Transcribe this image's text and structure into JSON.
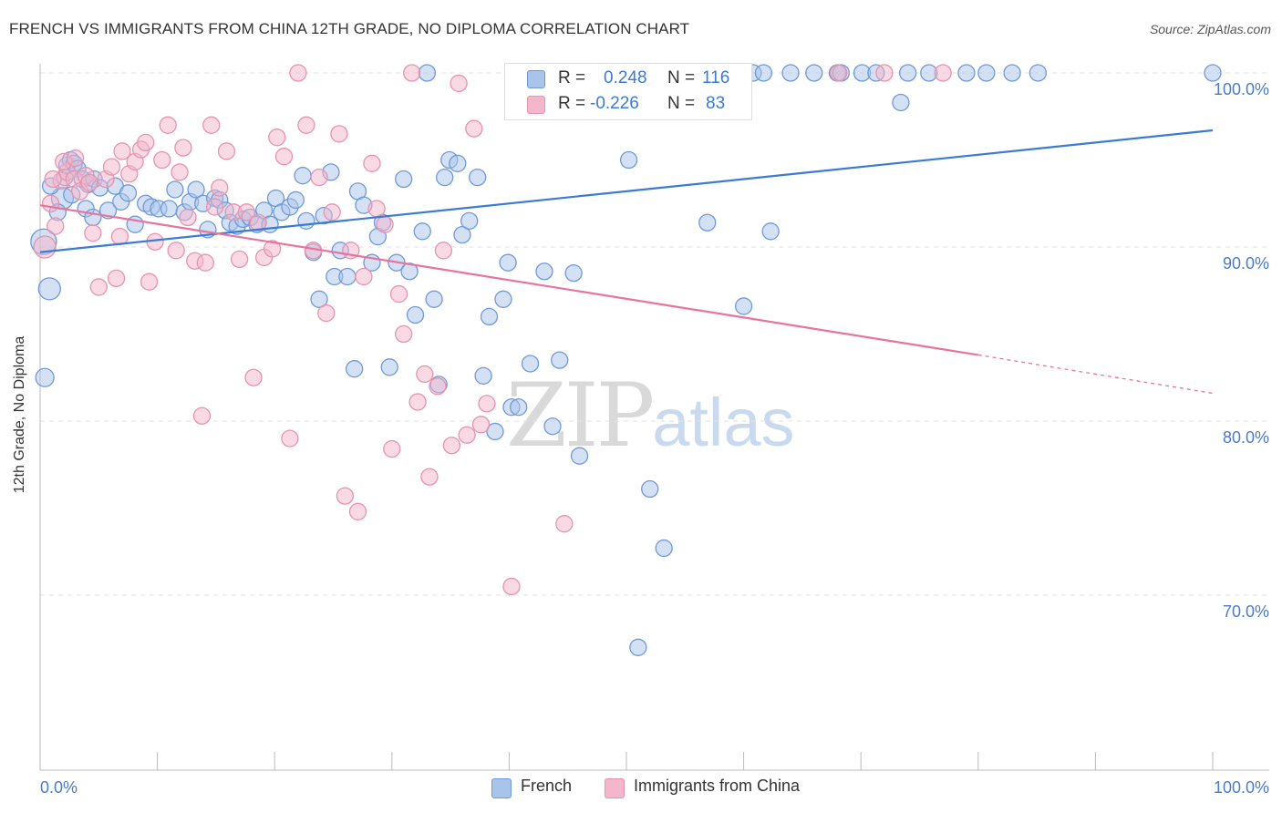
{
  "header": {
    "title": "FRENCH VS IMMIGRANTS FROM CHINA 12TH GRADE, NO DIPLOMA CORRELATION CHART",
    "source": "Source: ZipAtlas.com"
  },
  "watermark": {
    "zip": "ZIP",
    "atlas": "atlas"
  },
  "colors": {
    "blue": "#3a7bd5",
    "blue_fill": "#a9c4ea",
    "pink": "#e8739d",
    "pink_fill": "#f4b6ca",
    "axis_text": "#4a7cc9",
    "grid": "#e2e2e2"
  },
  "legend_top": {
    "rows": [
      {
        "r_label": "R =",
        "r_value": "0.248",
        "n_label": "N =",
        "n_value": "116"
      },
      {
        "r_label": "R =",
        "r_value": "-0.226",
        "n_label": "N =",
        "n_value": "83"
      }
    ]
  },
  "legend_bottom": {
    "items": [
      "French",
      "Immigrants from China"
    ]
  },
  "chart_data": {
    "type": "scatter",
    "title": "FRENCH VS IMMIGRANTS FROM CHINA 12TH GRADE, NO DIPLOMA CORRELATION CHART",
    "xlabel": "",
    "ylabel": "12th Grade, No Diploma",
    "xlim": [
      0,
      100
    ],
    "ylim": [
      60.5,
      101.5
    ],
    "x_tick_labels": [
      "0.0%",
      "100.0%"
    ],
    "y_ticks": [
      100,
      90,
      80,
      70
    ],
    "y_tick_labels": [
      "100.0%",
      "90.0%",
      "80.0%",
      "70.0%"
    ],
    "grid": true,
    "legend_position": "top-center",
    "series": [
      {
        "name": "French",
        "color": "#3a7bd5",
        "r": 0.248,
        "n": 116,
        "trend": [
          [
            0,
            89.7
          ],
          [
            100,
            96.7
          ]
        ],
        "points": [
          [
            0.3,
            90.3
          ],
          [
            0.8,
            87.6
          ],
          [
            0.4,
            82.5
          ],
          [
            1.9,
            92.8
          ],
          [
            2.1,
            94.0
          ],
          [
            2.3,
            94.7
          ],
          [
            2.6,
            95.0
          ],
          [
            2.9,
            94.8
          ],
          [
            3.2,
            94.5
          ],
          [
            3.6,
            93.9
          ],
          [
            4.1,
            93.6
          ],
          [
            4.6,
            93.9
          ],
          [
            5.1,
            93.4
          ],
          [
            5.8,
            92.1
          ],
          [
            6.4,
            93.5
          ],
          [
            6.9,
            92.6
          ],
          [
            7.5,
            93.1
          ],
          [
            8.1,
            91.3
          ],
          [
            9.0,
            92.5
          ],
          [
            9.5,
            92.3
          ],
          [
            10.1,
            92.2
          ],
          [
            11.0,
            92.2
          ],
          [
            11.5,
            93.3
          ],
          [
            12.3,
            92.0
          ],
          [
            12.8,
            92.6
          ],
          [
            13.3,
            93.3
          ],
          [
            13.9,
            92.5
          ],
          [
            14.3,
            91.0
          ],
          [
            14.9,
            92.8
          ],
          [
            15.3,
            92.7
          ],
          [
            15.8,
            92.1
          ],
          [
            16.2,
            91.4
          ],
          [
            16.8,
            91.2
          ],
          [
            17.3,
            91.6
          ],
          [
            17.9,
            91.7
          ],
          [
            18.5,
            91.3
          ],
          [
            19.1,
            92.1
          ],
          [
            19.6,
            91.3
          ],
          [
            20.1,
            92.8
          ],
          [
            20.6,
            92.0
          ],
          [
            21.3,
            92.3
          ],
          [
            21.8,
            92.7
          ],
          [
            22.4,
            94.1
          ],
          [
            22.7,
            91.5
          ],
          [
            23.3,
            89.7
          ],
          [
            23.8,
            87.0
          ],
          [
            24.2,
            91.8
          ],
          [
            24.8,
            94.3
          ],
          [
            25.1,
            88.3
          ],
          [
            25.6,
            89.8
          ],
          [
            26.2,
            88.3
          ],
          [
            26.8,
            83.0
          ],
          [
            27.1,
            93.2
          ],
          [
            27.6,
            92.4
          ],
          [
            28.3,
            89.1
          ],
          [
            28.8,
            90.6
          ],
          [
            29.2,
            91.4
          ],
          [
            29.8,
            83.1
          ],
          [
            30.4,
            89.1
          ],
          [
            31.0,
            93.9
          ],
          [
            31.5,
            88.6
          ],
          [
            32.0,
            86.1
          ],
          [
            32.6,
            90.9
          ],
          [
            33.0,
            100.0
          ],
          [
            33.6,
            87.0
          ],
          [
            34.0,
            82.1
          ],
          [
            34.5,
            94.0
          ],
          [
            34.9,
            95.0
          ],
          [
            35.6,
            94.8
          ],
          [
            36.0,
            90.7
          ],
          [
            36.6,
            91.5
          ],
          [
            37.3,
            94.0
          ],
          [
            37.8,
            82.6
          ],
          [
            38.3,
            86.0
          ],
          [
            38.8,
            79.4
          ],
          [
            39.5,
            87.0
          ],
          [
            39.9,
            89.1
          ],
          [
            40.2,
            80.8
          ],
          [
            40.8,
            80.8
          ],
          [
            41.5,
            100.0
          ],
          [
            41.8,
            83.3
          ],
          [
            42.4,
            100.0
          ],
          [
            43.0,
            88.6
          ],
          [
            43.7,
            79.7
          ],
          [
            44.3,
            83.5
          ],
          [
            44.9,
            100.0
          ],
          [
            45.5,
            88.5
          ],
          [
            46.0,
            78.0
          ],
          [
            46.9,
            100.0
          ],
          [
            48.2,
            100.0
          ],
          [
            49.4,
            100.0
          ],
          [
            50.2,
            95.0
          ],
          [
            51.0,
            67.0
          ],
          [
            52.0,
            76.1
          ],
          [
            52.6,
            100.0
          ],
          [
            53.2,
            72.7
          ],
          [
            53.7,
            100.0
          ],
          [
            55.8,
            100.0
          ],
          [
            56.4,
            100.0
          ],
          [
            56.9,
            91.4
          ],
          [
            59.0,
            100.0
          ],
          [
            60.0,
            86.6
          ],
          [
            60.8,
            100.0
          ],
          [
            61.7,
            100.0
          ],
          [
            62.3,
            90.9
          ],
          [
            64.0,
            100.0
          ],
          [
            66.0,
            100.0
          ],
          [
            68.0,
            100.0
          ],
          [
            68.3,
            100.0
          ],
          [
            70.1,
            100.0
          ],
          [
            71.3,
            100.0
          ],
          [
            73.4,
            98.3
          ],
          [
            74.0,
            100.0
          ],
          [
            75.8,
            100.0
          ],
          [
            79.0,
            100.0
          ],
          [
            80.7,
            100.0
          ],
          [
            82.9,
            100.0
          ],
          [
            85.1,
            100.0
          ],
          [
            100.0,
            100.0
          ],
          [
            0.9,
            93.5
          ],
          [
            1.5,
            92.0
          ],
          [
            2.7,
            93.0
          ],
          [
            3.9,
            92.2
          ],
          [
            4.5,
            91.7
          ]
        ],
        "sizes": [
          30,
          26,
          22,
          26,
          22,
          20
        ]
      },
      {
        "name": "Immigrants from China",
        "color": "#e8739d",
        "r": -0.226,
        "n": 83,
        "trend": [
          [
            0,
            92.4
          ],
          [
            80,
            83.8
          ]
        ],
        "trend_dashed": [
          [
            80,
            83.8
          ],
          [
            100,
            81.6
          ]
        ],
        "points": [
          [
            0.4,
            90.0
          ],
          [
            0.9,
            92.5
          ],
          [
            1.3,
            91.2
          ],
          [
            1.8,
            93.8
          ],
          [
            2.3,
            94.3
          ],
          [
            2.9,
            93.9
          ],
          [
            3.4,
            93.2
          ],
          [
            3.9,
            94.1
          ],
          [
            4.5,
            90.8
          ],
          [
            5.0,
            87.7
          ],
          [
            5.6,
            93.9
          ],
          [
            6.1,
            94.6
          ],
          [
            6.5,
            88.2
          ],
          [
            7.0,
            95.5
          ],
          [
            7.6,
            94.2
          ],
          [
            8.1,
            94.9
          ],
          [
            8.6,
            95.6
          ],
          [
            9.3,
            88.0
          ],
          [
            9.8,
            90.3
          ],
          [
            10.4,
            95.0
          ],
          [
            10.9,
            97.0
          ],
          [
            11.6,
            89.8
          ],
          [
            12.2,
            95.7
          ],
          [
            12.6,
            91.7
          ],
          [
            13.2,
            89.2
          ],
          [
            13.8,
            80.3
          ],
          [
            14.1,
            89.1
          ],
          [
            14.6,
            97.0
          ],
          [
            15.3,
            93.4
          ],
          [
            15.9,
            95.5
          ],
          [
            16.5,
            92.0
          ],
          [
            17.0,
            89.3
          ],
          [
            17.6,
            92.0
          ],
          [
            18.2,
            82.5
          ],
          [
            18.6,
            91.4
          ],
          [
            19.1,
            89.4
          ],
          [
            19.8,
            89.9
          ],
          [
            20.2,
            96.3
          ],
          [
            20.8,
            95.2
          ],
          [
            21.3,
            79.0
          ],
          [
            22.0,
            100.0
          ],
          [
            22.7,
            97.0
          ],
          [
            23.3,
            89.8
          ],
          [
            23.8,
            94.0
          ],
          [
            24.4,
            86.2
          ],
          [
            24.9,
            92.0
          ],
          [
            25.5,
            96.5
          ],
          [
            26.0,
            75.7
          ],
          [
            26.5,
            89.8
          ],
          [
            27.1,
            74.8
          ],
          [
            27.6,
            88.3
          ],
          [
            28.3,
            94.8
          ],
          [
            28.7,
            92.2
          ],
          [
            29.4,
            91.3
          ],
          [
            30.0,
            78.4
          ],
          [
            30.6,
            87.3
          ],
          [
            31.0,
            85.0
          ],
          [
            31.7,
            100.0
          ],
          [
            32.2,
            81.1
          ],
          [
            32.8,
            82.7
          ],
          [
            33.2,
            76.8
          ],
          [
            33.9,
            82.0
          ],
          [
            34.4,
            89.8
          ],
          [
            35.1,
            78.6
          ],
          [
            35.7,
            99.4
          ],
          [
            36.4,
            79.2
          ],
          [
            37.0,
            96.8
          ],
          [
            37.6,
            79.8
          ],
          [
            38.1,
            81.0
          ],
          [
            40.2,
            70.5
          ],
          [
            44.7,
            74.1
          ],
          [
            49.9,
            100.0
          ],
          [
            68.1,
            100.0
          ],
          [
            72.0,
            100.0
          ],
          [
            77.0,
            100.0
          ],
          [
            1.1,
            93.9
          ],
          [
            2.0,
            94.9
          ],
          [
            3.0,
            95.1
          ],
          [
            4.2,
            93.7
          ],
          [
            6.8,
            90.6
          ],
          [
            9.0,
            96.0
          ],
          [
            11.9,
            94.3
          ],
          [
            14.9,
            92.3
          ]
        ]
      }
    ]
  }
}
